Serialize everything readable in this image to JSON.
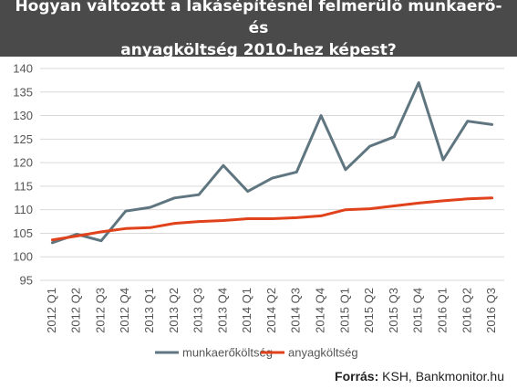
{
  "chart_data": {
    "type": "line",
    "title": "Hogyan változott a lakásépítésnél felmerülő munkaerő- és\nanyagköltség 2010-hez képest?",
    "categories": [
      "2012 Q1",
      "2012 Q2",
      "2012 Q3",
      "2012 Q4",
      "2013 Q1",
      "2013 Q2",
      "2013 Q3",
      "2013 Q4",
      "2014 Q1",
      "2014 Q2",
      "2014 Q3",
      "2014 Q4",
      "2015 Q1",
      "2015 Q2",
      "2015 Q3",
      "2015 Q4",
      "2016 Q1",
      "2016 Q2",
      "2016 Q3"
    ],
    "yticks": [
      95,
      100,
      105,
      110,
      115,
      120,
      125,
      130,
      135,
      140
    ],
    "ylim": [
      95,
      140
    ],
    "grid": true,
    "legend_position": "bottom",
    "series": [
      {
        "name": "munkaerőköltség",
        "color": "#5f7680",
        "values": [
          103.0,
          104.8,
          103.4,
          109.7,
          110.5,
          112.5,
          113.2,
          119.4,
          113.9,
          116.7,
          118.0,
          130.0,
          118.5,
          123.5,
          125.5,
          137.0,
          120.6,
          128.8,
          128.1
        ]
      },
      {
        "name": "anyagköltség",
        "color": "#e0421c",
        "values": [
          103.6,
          104.4,
          105.3,
          106.0,
          106.2,
          107.1,
          107.5,
          107.7,
          108.1,
          108.1,
          108.3,
          108.7,
          110.0,
          110.2,
          110.8,
          111.4,
          111.9,
          112.3,
          112.5
        ]
      }
    ]
  },
  "source": {
    "label": "Forrás:",
    "text": " KSH, Bankmonitor.hu"
  }
}
